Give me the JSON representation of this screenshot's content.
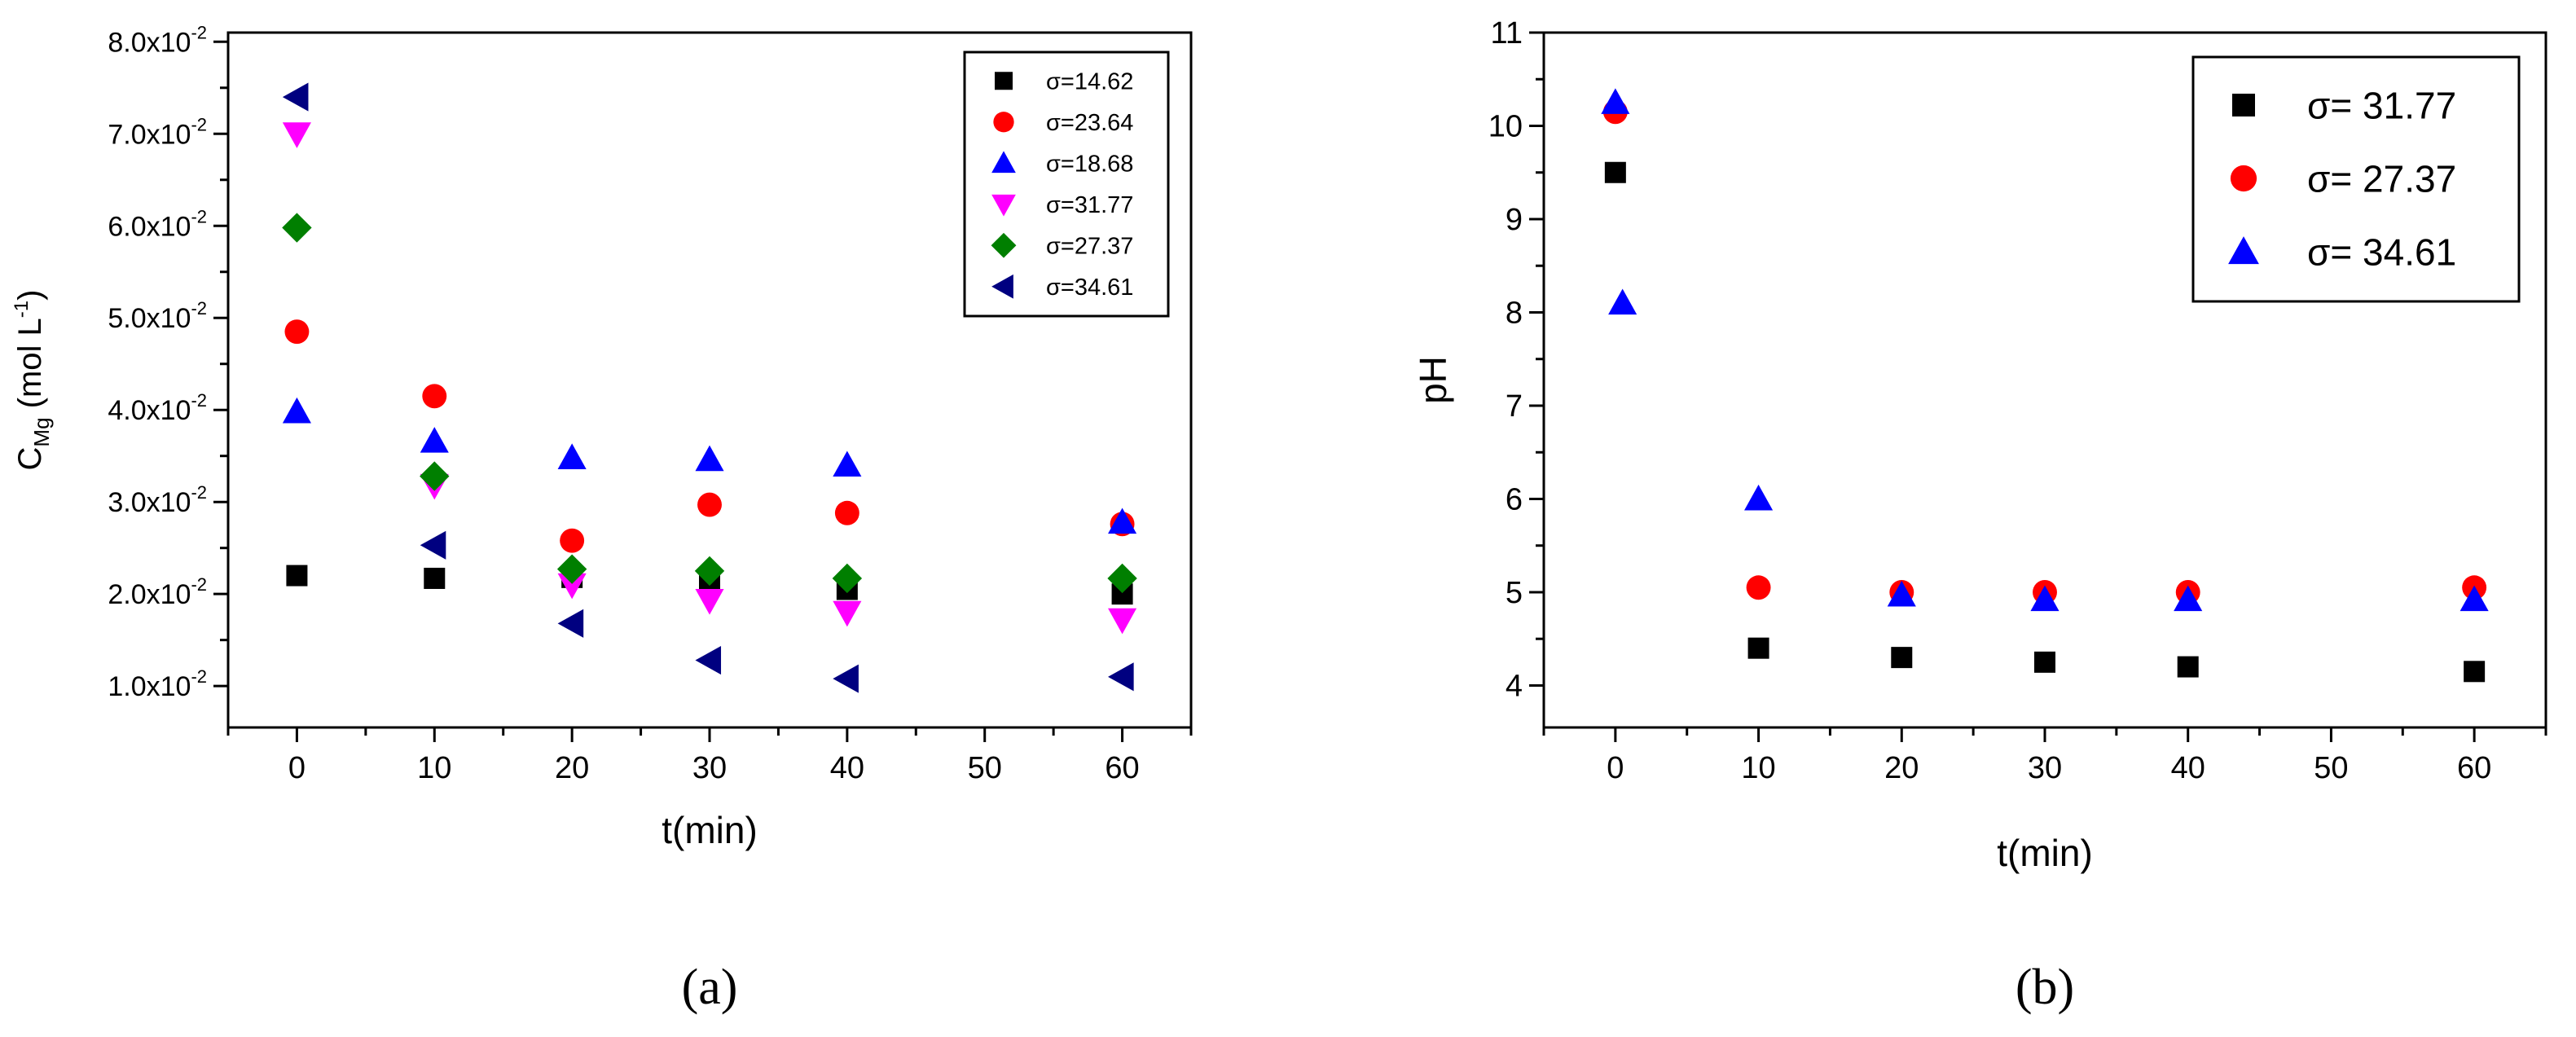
{
  "chart_data": [
    {
      "panel_label": "(a)",
      "type": "scatter",
      "ylabel": "C",
      "ylabel_sub": "Mg",
      "ylabel_unit_main": " (mol L",
      "ylabel_unit_sup": "-1",
      "ylabel_unit_end": ")",
      "xlabel": "t(min)",
      "xlim": [
        -5,
        65
      ],
      "ylim": [
        0.0055,
        0.081
      ],
      "x_ticks": [
        0,
        10,
        20,
        30,
        40,
        50,
        60
      ],
      "x_tick_labels": [
        "0",
        "10",
        "20",
        "30",
        "40",
        "50",
        "60"
      ],
      "y_ticks": [
        0.01,
        0.02,
        0.03,
        0.04,
        0.05,
        0.06,
        0.07,
        0.08
      ],
      "y_tick_mantissas": [
        "1.0x10",
        "2.0x10",
        "3.0x10",
        "4.0x10",
        "5.0x10",
        "6.0x10",
        "7.0x10",
        "8.0x10"
      ],
      "y_tick_exponent": "-2",
      "legend_position": "top-right",
      "series": [
        {
          "name": "σ=14.62",
          "marker": "square",
          "color": "#000000",
          "x": [
            0,
            10,
            20,
            30,
            40,
            60
          ],
          "y": [
            0.022,
            0.0217,
            0.0218,
            0.0215,
            0.0205,
            0.02
          ]
        },
        {
          "name": "σ=23.64",
          "marker": "circle",
          "color": "#ff0000",
          "x": [
            0,
            10,
            20,
            30,
            40,
            60
          ],
          "y": [
            0.0485,
            0.0415,
            0.0258,
            0.0297,
            0.0288,
            0.0276
          ]
        },
        {
          "name": "σ=18.68",
          "marker": "triangle-up",
          "color": "#0000ff",
          "x": [
            0,
            10,
            20,
            30,
            40,
            60
          ],
          "y": [
            0.0398,
            0.0366,
            0.0348,
            0.0346,
            0.034,
            0.0278
          ]
        },
        {
          "name": "σ=31.77",
          "marker": "triangle-down",
          "color": "#ff00ff",
          "x": [
            0,
            10,
            20,
            30,
            40,
            60
          ],
          "y": [
            0.07,
            0.0318,
            0.021,
            0.0193,
            0.018,
            0.0172
          ]
        },
        {
          "name": "σ=27.37",
          "marker": "diamond",
          "color": "#007f00",
          "x": [
            0,
            10,
            20,
            30,
            40,
            60
          ],
          "y": [
            0.0598,
            0.0328,
            0.0227,
            0.0225,
            0.0217,
            0.0217
          ]
        },
        {
          "name": "σ=34.61",
          "marker": "triangle-left",
          "color": "#000080",
          "x": [
            0,
            10,
            20,
            30,
            40,
            60
          ],
          "y": [
            0.074,
            0.0253,
            0.0168,
            0.0128,
            0.0108,
            0.011
          ]
        }
      ]
    },
    {
      "panel_label": "(b)",
      "type": "scatter",
      "ylabel": "pH",
      "xlabel": "t(min)",
      "xlim": [
        -5,
        65
      ],
      "ylim": [
        3.55,
        11
      ],
      "x_ticks": [
        0,
        10,
        20,
        30,
        40,
        50,
        60
      ],
      "x_tick_labels": [
        "0",
        "10",
        "20",
        "30",
        "40",
        "50",
        "60"
      ],
      "y_ticks": [
        4,
        5,
        6,
        7,
        8,
        9,
        10,
        11
      ],
      "y_tick_labels": [
        "4",
        "5",
        "6",
        "7",
        "8",
        "9",
        "10",
        "11"
      ],
      "legend_position": "top-right",
      "series": [
        {
          "name": "σ= 31.77",
          "marker": "square",
          "color": "#000000",
          "x": [
            0,
            10,
            20,
            30,
            40,
            60
          ],
          "y": [
            9.5,
            4.4,
            4.3,
            4.25,
            4.2,
            4.15
          ]
        },
        {
          "name": "σ= 27.37",
          "marker": "circle",
          "color": "#ff0000",
          "x": [
            0,
            10,
            20,
            30,
            40,
            60
          ],
          "y": [
            10.15,
            5.05,
            5.0,
            5.0,
            5.0,
            5.05
          ]
        },
        {
          "name": "σ= 34.61",
          "marker": "triangle-up",
          "color": "#0000ff",
          "x": [
            0,
            0.5,
            10,
            20,
            30,
            40,
            60
          ],
          "y": [
            10.25,
            8.1,
            6.0,
            4.97,
            4.92,
            4.92,
            4.92
          ]
        }
      ]
    }
  ]
}
